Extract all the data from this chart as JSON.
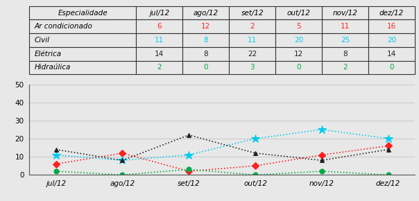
{
  "months": [
    "jul/12",
    "ago/12",
    "set/12",
    "out/12",
    "nov/12",
    "dez/12"
  ],
  "series_order": [
    "Ar condicionado",
    "Civil",
    "Elétrica",
    "Hidraúlica"
  ],
  "series": {
    "Ar condicionado": [
      6,
      12,
      2,
      5,
      11,
      16
    ],
    "Civil": [
      11,
      8,
      11,
      20,
      25,
      20
    ],
    "Elétrica": [
      14,
      8,
      22,
      12,
      8,
      14
    ],
    "Hidraúlica": [
      2,
      0,
      3,
      0,
      2,
      0
    ]
  },
  "colors": {
    "Ar condicionado": "#FF2020",
    "Civil": "#00CCEE",
    "Elétrica": "#222222",
    "Hidraúlica": "#00AA44"
  },
  "markers": {
    "Ar condicionado": "D",
    "Civil": "*",
    "Elétrica": "^",
    "Hidraúlica": "o"
  },
  "table_header": [
    "Especialidade",
    "jul/12",
    "ago/12",
    "set/12",
    "out/12",
    "nov/12",
    "dez/12"
  ],
  "table_rows": [
    [
      "Ar condicionado",
      "6",
      "12",
      "2",
      "5",
      "11",
      "16"
    ],
    [
      "Civil",
      "11",
      "8",
      "11",
      "20",
      "25",
      "20"
    ],
    [
      "Elétrica",
      "14",
      "8",
      "22",
      "12",
      "8",
      "14"
    ],
    [
      "Hidraúlica",
      "2",
      "0",
      "3",
      "0",
      "2",
      "0"
    ]
  ],
  "data_colors": {
    "Ar condicionado": "#FF2020",
    "Civil": "#00CCEE",
    "Elétrica": "#222222",
    "Hidraúlica": "#00AA44"
  },
  "ylim": [
    0,
    50
  ],
  "yticks": [
    0,
    10,
    20,
    30,
    40,
    50
  ],
  "bg_color": "#E8E8E8",
  "plot_bg": "#E8E8E8",
  "fig_bg": "#E8E8E8"
}
